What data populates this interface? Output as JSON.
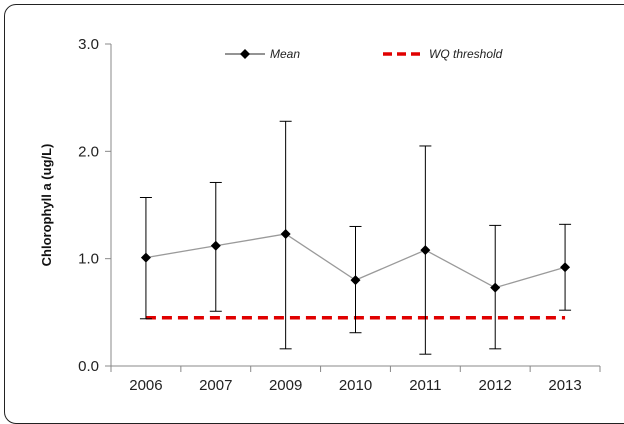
{
  "chart_data": {
    "type": "line",
    "categories": [
      "2006",
      "2007",
      "2009",
      "2010",
      "2011",
      "2012",
      "2013"
    ],
    "series": [
      {
        "name": "Mean",
        "values": [
          1.01,
          1.12,
          1.23,
          0.8,
          1.08,
          0.73,
          0.92
        ],
        "error_low": [
          0.44,
          0.51,
          0.16,
          0.31,
          0.11,
          0.16,
          0.52
        ],
        "error_high": [
          1.57,
          1.71,
          2.28,
          1.3,
          2.05,
          1.31,
          1.32
        ],
        "color": "#000000",
        "marker": "diamond",
        "line_color": "#9a9a9a"
      },
      {
        "name": "WQ threshold",
        "values": [
          0.45,
          0.45,
          0.45,
          0.45,
          0.45,
          0.45,
          0.45
        ],
        "color": "#e00000",
        "style": "dashed"
      }
    ],
    "title": "",
    "xlabel": "",
    "ylabel": "Chlorophyll a (ug/L)",
    "ylim": [
      0.0,
      3.0
    ],
    "yticks": [
      "0.0",
      "1.0",
      "2.0",
      "3.0"
    ],
    "grid": false,
    "legend_position": "top"
  }
}
